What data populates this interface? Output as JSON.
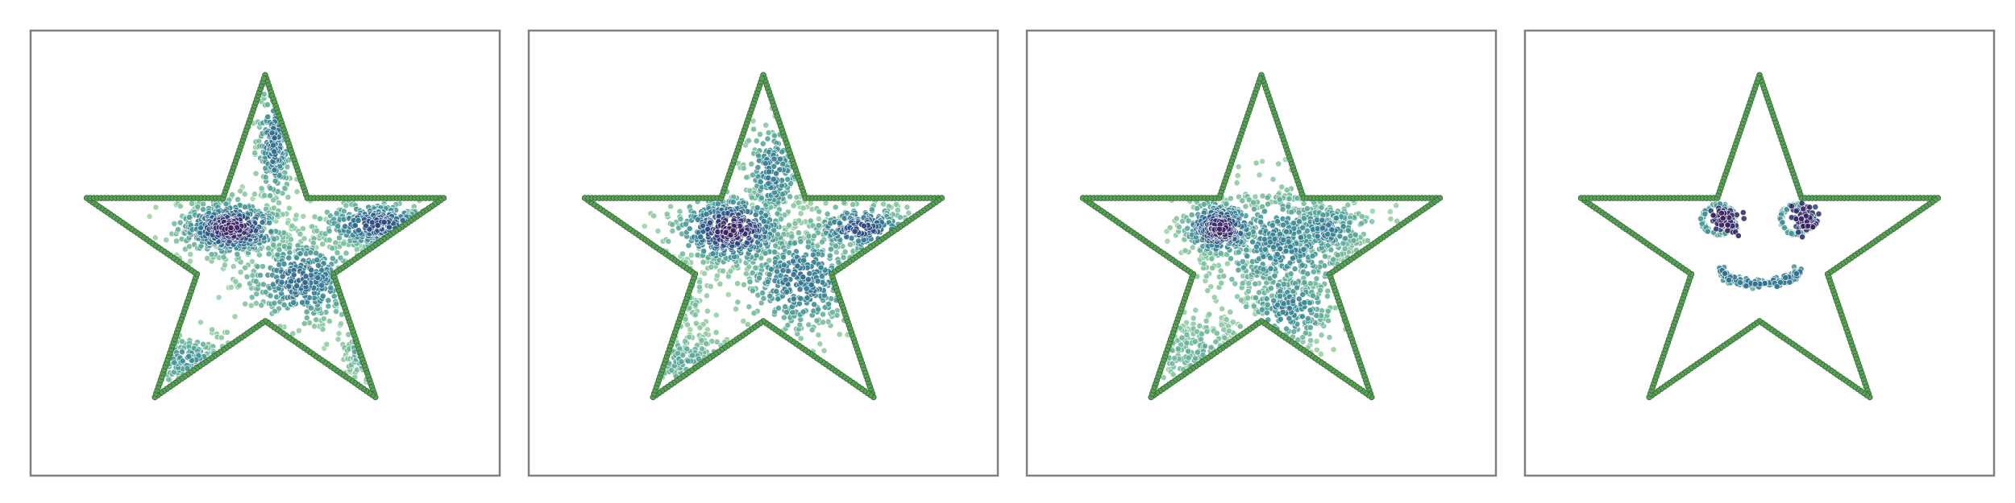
{
  "figure": {
    "frame_color": "#808080",
    "background": "#ffffff"
  },
  "chart_data": [
    {
      "type": "scatter",
      "grid": false,
      "axes_visible": false,
      "xlim": [
        -1.25,
        1.25
      ],
      "ylim": [
        -1.25,
        1.25
      ],
      "outline": {
        "shape": "five-point-star",
        "outer_vertices": [
          [
            0,
            1
          ],
          [
            -0.9511,
            0.309
          ],
          [
            -0.5878,
            -0.809
          ],
          [
            0.5878,
            -0.809
          ],
          [
            0.9511,
            0.309
          ]
        ],
        "inner_vertices": [
          [
            -0.2245,
            0.309
          ],
          [
            -0.3633,
            -0.118
          ],
          [
            0,
            -0.382
          ],
          [
            0.3633,
            -0.118
          ],
          [
            0.2245,
            0.309
          ]
        ],
        "marker_color": "#5a9e5a",
        "marker_edge": "#2e6b2e"
      },
      "colormap": [
        "#a8d8a8",
        "#6fb89a",
        "#3e8e96",
        "#2d6b8f",
        "#2c3e7a",
        "#3b1f5e"
      ],
      "clusters": [
        {
          "cx": -0.18,
          "cy": 0.14,
          "sx": 0.14,
          "sy": 0.08,
          "n": 520,
          "density": 1.0
        },
        {
          "cx": 0.6,
          "cy": 0.16,
          "sx": 0.16,
          "sy": 0.07,
          "n": 300,
          "density": 0.75
        },
        {
          "cx": 0.05,
          "cy": 0.62,
          "sx": 0.05,
          "sy": 0.18,
          "n": 220,
          "density": 0.6
        },
        {
          "cx": 0.2,
          "cy": -0.15,
          "sx": 0.16,
          "sy": 0.13,
          "n": 380,
          "density": 0.6
        },
        {
          "cx": -0.42,
          "cy": -0.6,
          "sx": 0.14,
          "sy": 0.08,
          "n": 140,
          "density": 0.35
        },
        {
          "cx": 0.52,
          "cy": -0.55,
          "sx": 0.06,
          "sy": 0.08,
          "n": 60,
          "density": 0.3
        }
      ]
    },
    {
      "type": "scatter",
      "grid": false,
      "axes_visible": false,
      "xlim": [
        -1.25,
        1.25
      ],
      "ylim": [
        -1.25,
        1.25
      ],
      "outline": {
        "shape": "five-point-star",
        "outer_vertices": [
          [
            0,
            1
          ],
          [
            -0.9511,
            0.309
          ],
          [
            -0.5878,
            -0.809
          ],
          [
            0.5878,
            -0.809
          ],
          [
            0.9511,
            0.309
          ]
        ],
        "inner_vertices": [
          [
            -0.2245,
            0.309
          ],
          [
            -0.3633,
            -0.118
          ],
          [
            0,
            -0.382
          ],
          [
            0.3633,
            -0.118
          ],
          [
            0.2245,
            0.309
          ]
        ],
        "marker_color": "#5a9e5a",
        "marker_edge": "#2e6b2e"
      },
      "colormap": [
        "#a8d8a8",
        "#6fb89a",
        "#3e8e96",
        "#2d6b8f",
        "#2c3e7a",
        "#3b1f5e"
      ],
      "clusters": [
        {
          "cx": -0.17,
          "cy": 0.13,
          "sx": 0.15,
          "sy": 0.1,
          "n": 480,
          "density": 1.0
        },
        {
          "cx": 0.52,
          "cy": 0.14,
          "sx": 0.14,
          "sy": 0.07,
          "n": 240,
          "density": 0.75
        },
        {
          "cx": 0.05,
          "cy": 0.45,
          "sx": 0.08,
          "sy": 0.15,
          "n": 200,
          "density": 0.5
        },
        {
          "cx": 0.2,
          "cy": -0.15,
          "sx": 0.17,
          "sy": 0.16,
          "n": 400,
          "density": 0.55
        },
        {
          "cx": -0.4,
          "cy": -0.62,
          "sx": 0.14,
          "sy": 0.1,
          "n": 130,
          "density": 0.25
        },
        {
          "cx": -0.45,
          "cy": -0.25,
          "sx": 0.08,
          "sy": 0.1,
          "n": 60,
          "density": 0.2
        }
      ]
    },
    {
      "type": "scatter",
      "grid": false,
      "axes_visible": false,
      "xlim": [
        -1.25,
        1.25
      ],
      "ylim": [
        -1.25,
        1.25
      ],
      "outline": {
        "shape": "five-point-star",
        "outer_vertices": [
          [
            0,
            1
          ],
          [
            -0.9511,
            0.309
          ],
          [
            -0.5878,
            -0.809
          ],
          [
            0.5878,
            -0.809
          ],
          [
            0.9511,
            0.309
          ]
        ],
        "inner_vertices": [
          [
            -0.2245,
            0.309
          ],
          [
            -0.3633,
            -0.118
          ],
          [
            0,
            -0.382
          ],
          [
            0.3633,
            -0.118
          ],
          [
            0.2245,
            0.309
          ]
        ],
        "marker_color": "#5a9e5a",
        "marker_edge": "#2e6b2e"
      },
      "colormap": [
        "#a8d8a8",
        "#6fb89a",
        "#3e8e96",
        "#2d6b8f",
        "#2c3e7a",
        "#3b1f5e"
      ],
      "clusters": [
        {
          "cx": -0.22,
          "cy": 0.14,
          "sx": 0.1,
          "sy": 0.08,
          "n": 360,
          "density": 1.0
        },
        {
          "cx": 0.1,
          "cy": 0.05,
          "sx": 0.22,
          "sy": 0.18,
          "n": 520,
          "density": 0.45
        },
        {
          "cx": 0.35,
          "cy": 0.14,
          "sx": 0.12,
          "sy": 0.08,
          "n": 200,
          "density": 0.5
        },
        {
          "cx": 0.15,
          "cy": -0.3,
          "sx": 0.14,
          "sy": 0.12,
          "n": 220,
          "density": 0.45
        },
        {
          "cx": -0.35,
          "cy": -0.55,
          "sx": 0.16,
          "sy": 0.1,
          "n": 160,
          "density": 0.2
        }
      ]
    },
    {
      "type": "scatter",
      "grid": false,
      "axes_visible": false,
      "xlim": [
        -1.25,
        1.25
      ],
      "ylim": [
        -1.25,
        1.25
      ],
      "outline": {
        "shape": "five-point-star",
        "outer_vertices": [
          [
            0,
            1
          ],
          [
            -0.9511,
            0.309
          ],
          [
            -0.5878,
            -0.809
          ],
          [
            0.5878,
            -0.809
          ],
          [
            0.9511,
            0.309
          ]
        ],
        "inner_vertices": [
          [
            -0.2245,
            0.309
          ],
          [
            -0.3633,
            -0.118
          ],
          [
            0,
            -0.382
          ],
          [
            0.3633,
            -0.118
          ],
          [
            0.2245,
            0.309
          ]
        ],
        "marker_color": "#5a9e5a",
        "marker_edge": "#2e6b2e"
      },
      "colormap": [
        "#a8d8a8",
        "#6fb89a",
        "#3e8e96",
        "#2d6b8f",
        "#2c3e7a",
        "#3b1f5e"
      ],
      "clusters": [],
      "face": {
        "left_eye": {
          "cx": -0.22,
          "cy": 0.19,
          "r": 0.09,
          "core": [
            -0.18,
            0.19
          ]
        },
        "right_eye": {
          "cx": 0.2,
          "cy": 0.19,
          "r": 0.09,
          "core": [
            0.24,
            0.19
          ]
        },
        "mouth": {
          "cx": 0.0,
          "cy": -0.12,
          "rx": 0.2,
          "ry": 0.1
        }
      }
    }
  ]
}
